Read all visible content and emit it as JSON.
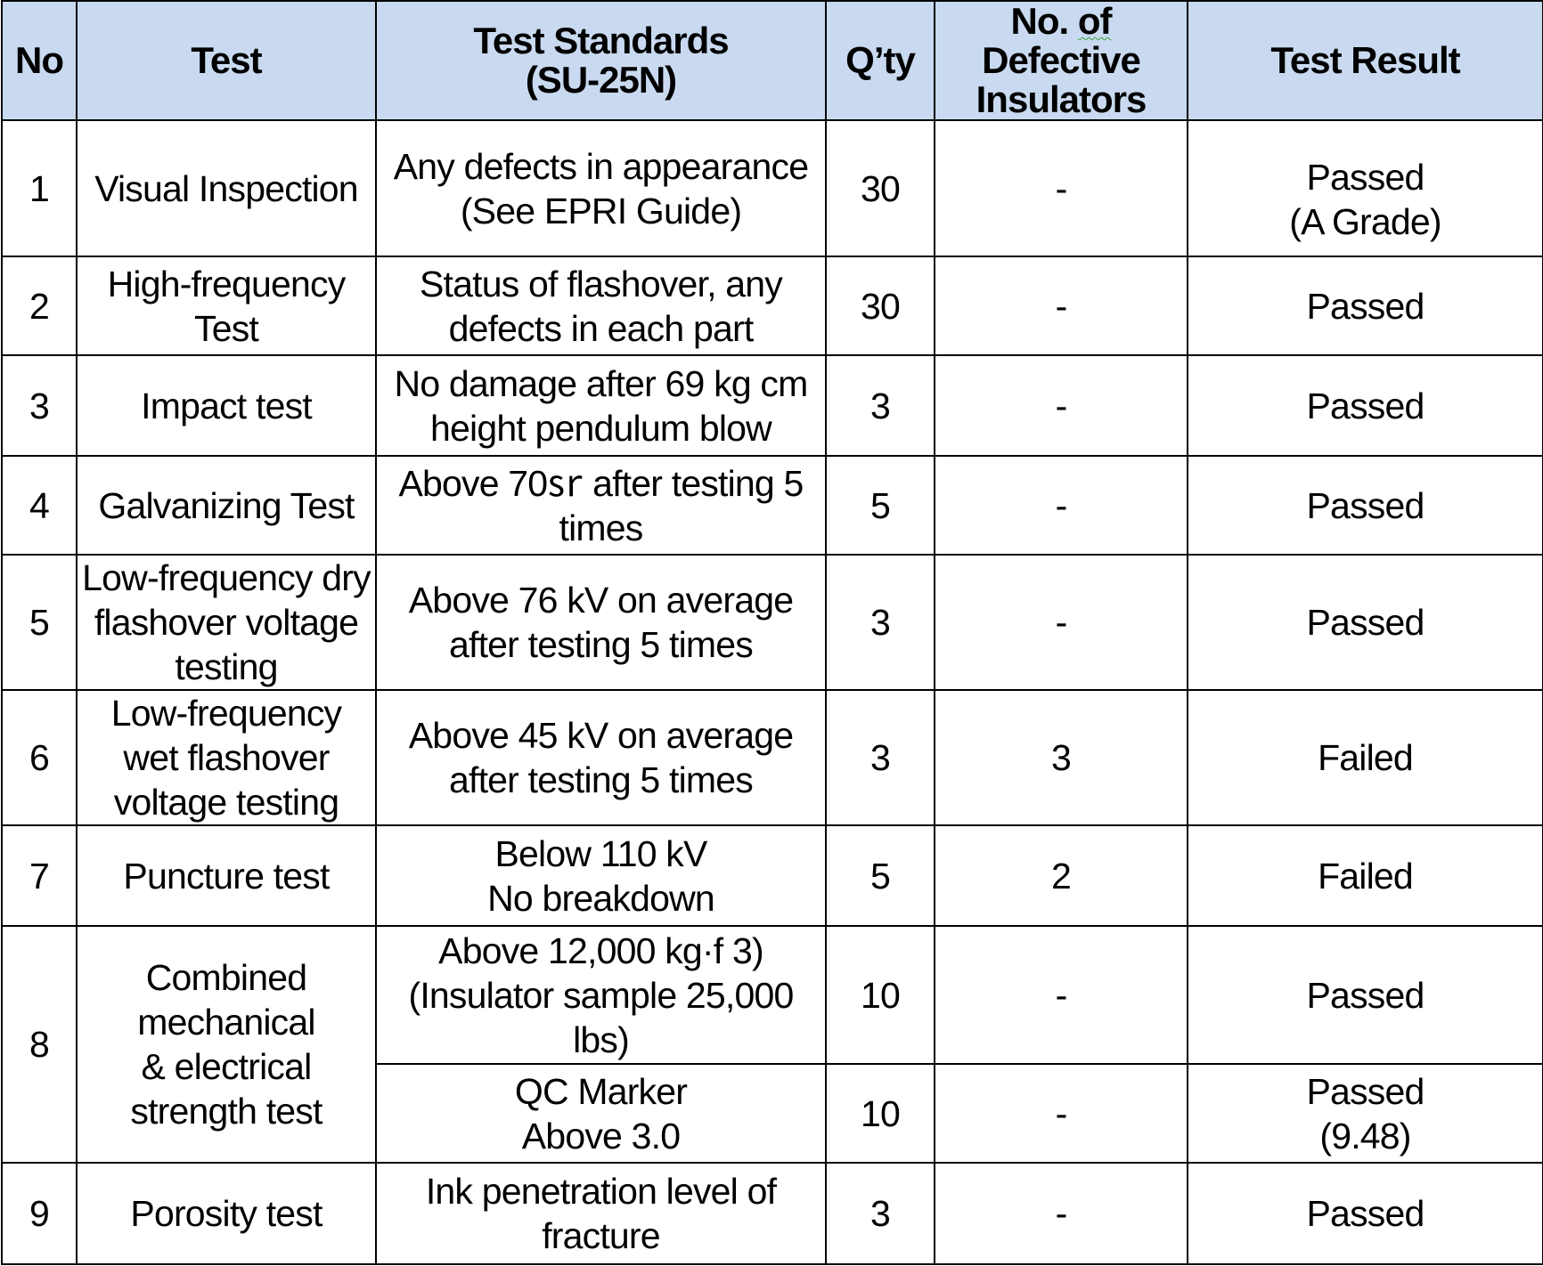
{
  "table": {
    "headers": {
      "no": "No",
      "test": "Test",
      "standards": "Test Standards\n(SU-25N)",
      "qty": "Q’ty",
      "defective_line1": "No. ",
      "defective_line1_marked": "of",
      "defective_rest": "Defective\nInsulators",
      "result": "Test Result"
    },
    "rows": [
      {
        "no": "1",
        "test": "Visual Inspection",
        "standard": "Any defects in appearance\n(See EPRI Guide)",
        "qty": "30",
        "defective": "-",
        "result": "Passed\n(A Grade)"
      },
      {
        "no": "2",
        "test": "High-frequency\nTest",
        "standard": "Status of flashover, any\ndefects in each part",
        "qty": "30",
        "defective": "-",
        "result": "Passed"
      },
      {
        "no": "3",
        "test": "Impact test",
        "standard": "No damage after 69 kg  cm\nheight pendulum blow",
        "qty": "3",
        "defective": "-",
        "result": "Passed"
      },
      {
        "no": "4",
        "test": "Galvanizing Test",
        "standard": "Above 70㏛ after testing 5\ntimes",
        "qty": "5",
        "defective": "-",
        "result": "Passed"
      },
      {
        "no": "5",
        "test": "Low-frequency dry\nflashover voltage\ntesting",
        "standard": "Above 76 kV on average\nafter testing 5 times",
        "qty": "3",
        "defective": "-",
        "result": "Passed"
      },
      {
        "no": "6",
        "test": "Low-frequency\nwet flashover\nvoltage testing",
        "standard": "Above 45 kV on average\nafter testing 5 times",
        "qty": "3",
        "defective": "3",
        "result": "Failed"
      },
      {
        "no": "7",
        "test": "Puncture test",
        "standard": "Below 110 kV\nNo breakdown",
        "qty": "5",
        "defective": "2",
        "result": "Failed"
      },
      {
        "no": "8",
        "test": "Combined\nmechanical\n& electrical\nstrength test",
        "standard": "Above 12,000 kg·f 3)\n(Insulator sample 25,000\nlbs)",
        "qty": "10",
        "defective": "-",
        "result": "Passed"
      },
      {
        "standard": "QC Marker\nAbove 3.0",
        "qty": "10",
        "defective": "-",
        "result": "Passed\n(9.48)"
      },
      {
        "no": "9",
        "test": "Porosity test",
        "standard": "Ink penetration level of\nfracture",
        "qty": "3",
        "defective": "-",
        "result": "Passed"
      }
    ]
  }
}
